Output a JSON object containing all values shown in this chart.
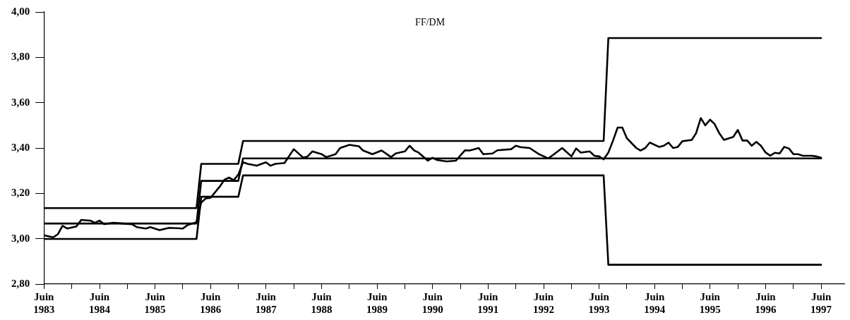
{
  "chart_data": {
    "type": "line",
    "title": "FF/DM",
    "xlim": [
      "1983-06",
      "1997-11"
    ],
    "xticks": [
      {
        "value": "1983-06",
        "label": "Juin 1983"
      },
      {
        "value": "1983-12",
        "label": null
      },
      {
        "value": "1984-06",
        "label": "Juin 1984"
      },
      {
        "value": "1984-12",
        "label": null
      },
      {
        "value": "1985-06",
        "label": "Juin 1985"
      },
      {
        "value": "1985-12",
        "label": null
      },
      {
        "value": "1986-06",
        "label": "Juin 1986"
      },
      {
        "value": "1986-12",
        "label": null
      },
      {
        "value": "1987-06",
        "label": "Juin 1987"
      },
      {
        "value": "1987-12",
        "label": null
      },
      {
        "value": "1988-06",
        "label": "Juin 1988"
      },
      {
        "value": "1988-12",
        "label": null
      },
      {
        "value": "1989-06",
        "label": "Juin 1989"
      },
      {
        "value": "1989-12",
        "label": null
      },
      {
        "value": "1990-06",
        "label": "Juin 1990"
      },
      {
        "value": "1990-12",
        "label": null
      },
      {
        "value": "1991-06",
        "label": "Juin 1991"
      },
      {
        "value": "1991-12",
        "label": null
      },
      {
        "value": "1992-06",
        "label": "Juin 1992"
      },
      {
        "value": "1992-12",
        "label": null
      },
      {
        "value": "1993-06",
        "label": "Juin 1993"
      },
      {
        "value": "1993-12",
        "label": null
      },
      {
        "value": "1994-06",
        "label": "Juin 1994"
      },
      {
        "value": "1994-12",
        "label": null
      },
      {
        "value": "1995-06",
        "label": "Juin 1995"
      },
      {
        "value": "1995-12",
        "label": null
      },
      {
        "value": "1996-06",
        "label": "Juin 1996"
      },
      {
        "value": "1996-12",
        "label": null
      },
      {
        "value": "1997-06",
        "label": "Juin 1997"
      }
    ],
    "ylim": [
      2.8,
      4.0
    ],
    "yticks": [
      {
        "value": 2.8,
        "label": "2,80"
      },
      {
        "value": 3.0,
        "label": "3,00"
      },
      {
        "value": 3.2,
        "label": "3,20"
      },
      {
        "value": 3.4,
        "label": "3,40"
      },
      {
        "value": 3.6,
        "label": "3,60"
      },
      {
        "value": 3.8,
        "label": "3,80"
      },
      {
        "value": 4.0,
        "label": "4,00"
      }
    ],
    "grid": false,
    "legend": false,
    "marker": "none",
    "line_style": "solid",
    "series": [
      {
        "color": "#000000",
        "x": [
          "1983-06",
          "1986-03",
          "1986-04",
          "1986-12",
          "1987-01",
          "1993-07",
          "1993-08",
          "1997-06"
        ],
        "values": [
          3.135,
          3.135,
          3.33,
          3.33,
          3.431,
          3.431,
          3.885,
          3.885
        ]
      },
      {
        "color": "#000000",
        "x": [
          "1983-06",
          "1986-03",
          "1986-04",
          "1986-12",
          "1987-01",
          "1997-06"
        ],
        "values": [
          3.067,
          3.067,
          3.255,
          3.255,
          3.354,
          3.354
        ]
      },
      {
        "color": "#000000",
        "x": [
          "1983-06",
          "1986-03",
          "1986-04",
          "1986-12",
          "1987-01",
          "1993-07",
          "1993-08",
          "1997-06"
        ],
        "values": [
          2.999,
          2.999,
          3.185,
          3.185,
          3.279,
          3.279,
          2.885,
          2.885
        ]
      },
      {
        "color": "#000000",
        "x": [
          "1983-06",
          "1983-08",
          "1983-09",
          "1983-10",
          "1983-11",
          "1984-01",
          "1984-02",
          "1984-04",
          "1984-05",
          "1984-06",
          "1984-07",
          "1984-09",
          "1985-01",
          "1985-02",
          "1985-04",
          "1985-05",
          "1985-07",
          "1985-09",
          "1985-12",
          "1986-01",
          "1986-03",
          "1986-04",
          "1986-05",
          "1986-06",
          "1986-08",
          "1986-09",
          "1986-10",
          "1986-11",
          "1986-12",
          "1987-01",
          "1987-02",
          "1987-04",
          "1987-06",
          "1987-07",
          "1987-08",
          "1987-10",
          "1987-12",
          "1988-02",
          "1988-03",
          "1988-04",
          "1988-06",
          "1988-07",
          "1988-09",
          "1988-10",
          "1988-12",
          "1989-02",
          "1989-03",
          "1989-05",
          "1989-07",
          "1989-09",
          "1989-10",
          "1989-12",
          "1990-01",
          "1990-02",
          "1990-03",
          "1990-05",
          "1990-06",
          "1990-07",
          "1990-09",
          "1990-11",
          "1991-01",
          "1991-02",
          "1991-04",
          "1991-05",
          "1991-07",
          "1991-08",
          "1991-11",
          "1991-12",
          "1992-01",
          "1992-03",
          "1992-05",
          "1992-07",
          "1992-08",
          "1992-10",
          "1992-12",
          "1993-01",
          "1993-02",
          "1993-04",
          "1993-05",
          "1993-06",
          "1993-07",
          "1993-08",
          "1993-09",
          "1993-10",
          "1993-11",
          "1993-12",
          "1994-02",
          "1994-03",
          "1994-04",
          "1994-05",
          "1994-07",
          "1994-08",
          "1994-09",
          "1994-10",
          "1994-11",
          "1994-12",
          "1995-02",
          "1995-03",
          "1995-04",
          "1995-05",
          "1995-06",
          "1995-07",
          "1995-08",
          "1995-09",
          "1995-11",
          "1995-12",
          "1996-01",
          "1996-02",
          "1996-03",
          "1996-04",
          "1996-05",
          "1996-06",
          "1996-07",
          "1996-08",
          "1996-09",
          "1996-10",
          "1996-11",
          "1996-12",
          "1997-01",
          "1997-02",
          "1997-04",
          "1997-05",
          "1997-06"
        ],
        "values": [
          3.015,
          3.006,
          3.02,
          3.057,
          3.045,
          3.054,
          3.083,
          3.08,
          3.07,
          3.08,
          3.064,
          3.07,
          3.064,
          3.051,
          3.045,
          3.051,
          3.038,
          3.048,
          3.045,
          3.06,
          3.073,
          3.16,
          3.178,
          3.18,
          3.23,
          3.26,
          3.27,
          3.258,
          3.283,
          3.337,
          3.33,
          3.322,
          3.337,
          3.322,
          3.33,
          3.334,
          3.395,
          3.357,
          3.363,
          3.385,
          3.373,
          3.36,
          3.373,
          3.4,
          3.414,
          3.408,
          3.389,
          3.373,
          3.389,
          3.36,
          3.376,
          3.385,
          3.41,
          3.389,
          3.38,
          3.344,
          3.357,
          3.347,
          3.341,
          3.344,
          3.39,
          3.389,
          3.4,
          3.373,
          3.376,
          3.39,
          3.395,
          3.41,
          3.404,
          3.4,
          3.373,
          3.354,
          3.369,
          3.4,
          3.363,
          3.398,
          3.38,
          3.385,
          3.366,
          3.363,
          3.35,
          3.38,
          3.433,
          3.49,
          3.49,
          3.443,
          3.4,
          3.389,
          3.4,
          3.424,
          3.405,
          3.41,
          3.424,
          3.4,
          3.405,
          3.43,
          3.436,
          3.465,
          3.532,
          3.5,
          3.525,
          3.506,
          3.465,
          3.436,
          3.449,
          3.48,
          3.433,
          3.433,
          3.41,
          3.427,
          3.41,
          3.38,
          3.366,
          3.379,
          3.376,
          3.405,
          3.398,
          3.373,
          3.373,
          3.366,
          3.366,
          3.363,
          3.357
        ]
      }
    ]
  }
}
